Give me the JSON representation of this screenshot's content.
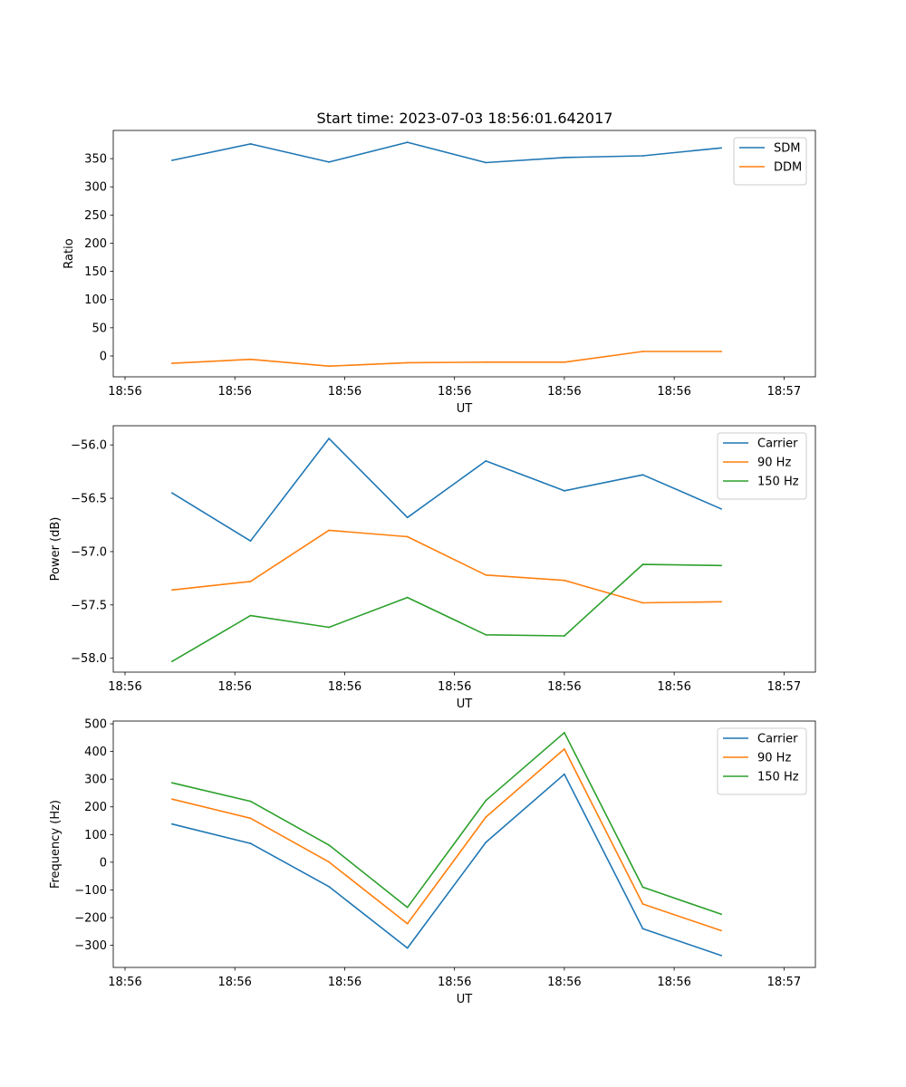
{
  "figure_title": "Start time: 2023-07-03 18:56:01.642017",
  "x_tick_labels": [
    "18:56",
    "18:56",
    "18:56",
    "18:56",
    "18:56",
    "18:56",
    "18:56"
  ],
  "x_end_label": "18:57",
  "colors": {
    "blue": "#1f77b4",
    "orange": "#ff7f0e",
    "green": "#2ca02c"
  },
  "chart_data": [
    {
      "type": "line",
      "title": "Start time: 2023-07-03 18:56:01.642017",
      "xlabel": "UT",
      "ylabel": "Ratio",
      "x": [
        1,
        2,
        3,
        4,
        5,
        6,
        7,
        8
      ],
      "xlim": [
        0.25,
        9.2
      ],
      "ylim": [
        -37,
        400
      ],
      "yticks": [
        0,
        50,
        100,
        150,
        200,
        250,
        300,
        350
      ],
      "ytick_labels": [
        "0",
        "50",
        "100",
        "150",
        "200",
        "250",
        "300",
        "350"
      ],
      "legend": "top-right",
      "series": [
        {
          "name": "SDM",
          "color": "#1f77b4",
          "values": [
            347,
            376,
            344,
            379,
            343,
            352,
            355,
            369
          ]
        },
        {
          "name": "DDM",
          "color": "#ff7f0e",
          "values": [
            -13,
            -6,
            -18,
            -12,
            -11,
            -11,
            8,
            8
          ]
        }
      ]
    },
    {
      "type": "line",
      "title": "",
      "xlabel": "UT",
      "ylabel": "Power (dB)",
      "x": [
        1,
        2,
        3,
        4,
        5,
        6,
        7,
        8
      ],
      "xlim": [
        0.25,
        9.2
      ],
      "ylim": [
        -58.13,
        -55.82
      ],
      "yticks": [
        -56.0,
        -56.5,
        -57.0,
        -57.5,
        -58.0
      ],
      "ytick_labels": [
        "−56.0",
        "−56.5",
        "−57.0",
        "−57.5",
        "−58.0"
      ],
      "legend": "top-right",
      "series": [
        {
          "name": "Carrier",
          "color": "#1f77b4",
          "values": [
            -56.45,
            -56.9,
            -55.94,
            -56.68,
            -56.15,
            -56.43,
            -56.28,
            -56.6
          ]
        },
        {
          "name": "90 Hz",
          "color": "#ff7f0e",
          "values": [
            -57.36,
            -57.28,
            -56.8,
            -56.86,
            -57.22,
            -57.27,
            -57.48,
            -57.47
          ]
        },
        {
          "name": "150 Hz",
          "color": "#2ca02c",
          "values": [
            -58.03,
            -57.6,
            -57.71,
            -57.43,
            -57.78,
            -57.79,
            -57.12,
            -57.13
          ]
        }
      ]
    },
    {
      "type": "line",
      "title": "",
      "xlabel": "UT",
      "ylabel": "Frequency (Hz)",
      "x": [
        1,
        2,
        3,
        4,
        5,
        6,
        7,
        8
      ],
      "xlim": [
        0.25,
        9.2
      ],
      "ylim": [
        -380,
        510
      ],
      "yticks": [
        500,
        400,
        300,
        200,
        100,
        0,
        -100,
        -200,
        -300
      ],
      "ytick_labels": [
        "500",
        "400",
        "300",
        "200",
        "100",
        "0",
        "−100",
        "−200",
        "−300"
      ],
      "legend": "top-right",
      "series": [
        {
          "name": "Carrier",
          "color": "#1f77b4",
          "values": [
            138,
            68,
            -88,
            -310,
            72,
            318,
            -240,
            -337
          ]
        },
        {
          "name": "90 Hz",
          "color": "#ff7f0e",
          "values": [
            228,
            159,
            1,
            -222,
            163,
            409,
            -151,
            -247
          ]
        },
        {
          "name": "150 Hz",
          "color": "#2ca02c",
          "values": [
            287,
            220,
            62,
            -163,
            223,
            468,
            -90,
            -188
          ]
        }
      ]
    }
  ]
}
